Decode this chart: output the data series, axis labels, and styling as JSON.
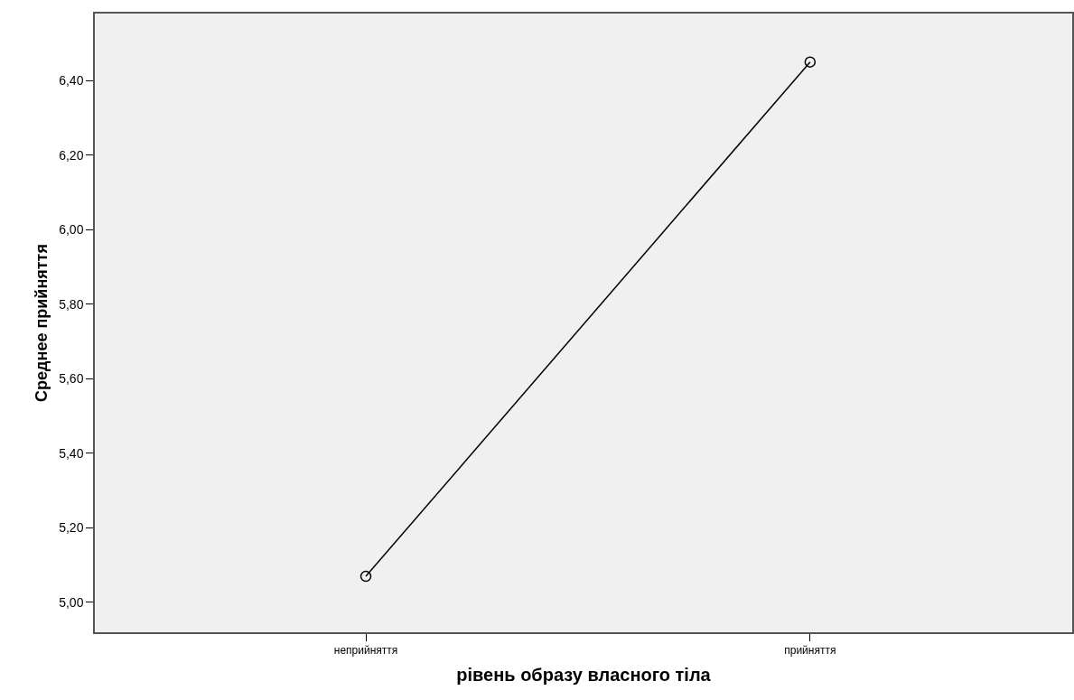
{
  "chart_data": {
    "type": "line",
    "xlabel": "рівень образу власного тіла",
    "ylabel": "Среднее прийняття",
    "categories": [
      "неприйняття",
      "прийняття"
    ],
    "series": [
      {
        "color": "#000000",
        "values": [
          5.07,
          6.45
        ]
      }
    ],
    "marker": "circle",
    "line_style": "solid",
    "ylim": [
      4.92,
      6.58
    ],
    "yticks": [
      {
        "value": 5.0,
        "label": "5,00"
      },
      {
        "value": 5.2,
        "label": "5,20"
      },
      {
        "value": 5.4,
        "label": "5,40"
      },
      {
        "value": 5.6,
        "label": "5,60"
      },
      {
        "value": 5.8,
        "label": "5,80"
      },
      {
        "value": 6.0,
        "label": "6,00"
      },
      {
        "value": 6.2,
        "label": "6,20"
      },
      {
        "value": 6.4,
        "label": "6,40"
      }
    ],
    "grid": false
  }
}
